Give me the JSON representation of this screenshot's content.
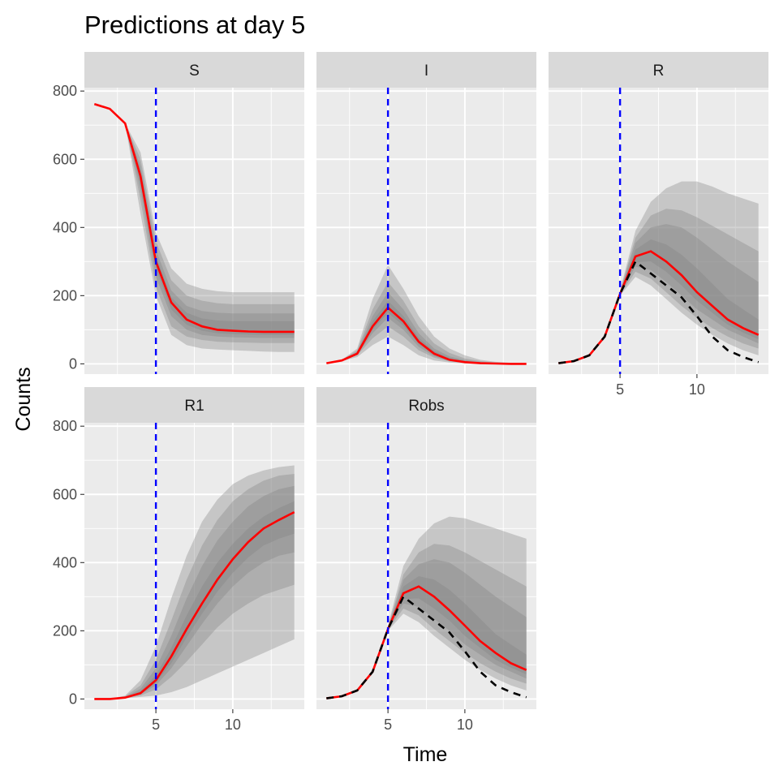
{
  "chart_data": {
    "type": "line",
    "title": "Predictions at day 5",
    "xlabel": "Time",
    "ylabel": "Counts",
    "xlim": [
      0.35,
      14.65
    ],
    "ylim": [
      -30,
      810
    ],
    "x_ticks": [
      5,
      10
    ],
    "y_ticks": [
      0,
      200,
      400,
      600,
      800
    ],
    "vline": {
      "x": 5,
      "color": "#0000ff",
      "style": "dashed"
    },
    "prediction_color": "#ff0000",
    "observed_color": "#000000",
    "band_fill": "#808080",
    "facets": [
      {
        "name": "S",
        "x": [
          1,
          2,
          3,
          4,
          5,
          6,
          7,
          8,
          9,
          10,
          11,
          12,
          13,
          14
        ],
        "prediction": [
          762,
          748,
          705,
          550,
          300,
          180,
          130,
          110,
          100,
          97,
          95,
          94,
          94,
          94
        ],
        "bands": [
          {
            "lower": [
              762,
              748,
              705,
              440,
              200,
              85,
              55,
              45,
              42,
              40,
              38,
              36,
              35,
              35
            ],
            "upper": [
              762,
              748,
              705,
              620,
              385,
              280,
              235,
              220,
              213,
              210,
              210,
              210,
              210,
              210
            ]
          },
          {
            "lower": [
              762,
              748,
              705,
              480,
              225,
              110,
              80,
              70,
              65,
              63,
              62,
              61,
              61,
              61
            ],
            "upper": [
              762,
              748,
              705,
              600,
              360,
              245,
              200,
              185,
              178,
              175,
              175,
              175,
              175,
              175
            ]
          },
          {
            "lower": [
              762,
              748,
              705,
              510,
              255,
              140,
              100,
              85,
              80,
              78,
              77,
              76,
              76,
              76
            ],
            "upper": [
              762,
              748,
              705,
              580,
              335,
              215,
              170,
              155,
              150,
              148,
              148,
              148,
              148,
              148
            ]
          },
          {
            "lower": [
              762,
              748,
              705,
              530,
              280,
              160,
              115,
              97,
              90,
              87,
              86,
              85,
              85,
              85
            ],
            "upper": [
              762,
              748,
              705,
              565,
              315,
              195,
              150,
              133,
              127,
              125,
              125,
              125,
              125,
              125
            ]
          }
        ]
      },
      {
        "name": "I",
        "x": [
          1,
          2,
          3,
          4,
          5,
          6,
          7,
          8,
          9,
          10,
          11,
          12,
          13,
          14
        ],
        "prediction": [
          2,
          10,
          30,
          110,
          165,
          125,
          65,
          30,
          12,
          5,
          2,
          1,
          0,
          0
        ],
        "bands": [
          {
            "lower": [
              2,
              8,
              20,
              55,
              80,
              55,
              25,
              10,
              4,
              1,
              0,
              0,
              0,
              0
            ],
            "upper": [
              2,
              12,
              45,
              190,
              290,
              220,
              140,
              80,
              45,
              25,
              12,
              6,
              3,
              2
            ]
          },
          {
            "lower": [
              2,
              9,
              25,
              75,
              110,
              80,
              40,
              18,
              7,
              3,
              1,
              0,
              0,
              0
            ],
            "upper": [
              2,
              11,
              40,
              160,
              240,
              185,
              110,
              60,
              32,
              16,
              8,
              4,
              2,
              1
            ]
          },
          {
            "lower": [
              2,
              9,
              27,
              90,
              135,
              100,
              50,
              22,
              9,
              4,
              1,
              0,
              0,
              0
            ],
            "upper": [
              2,
              11,
              35,
              140,
              210,
              160,
              90,
              45,
              22,
              11,
              5,
              2,
              1,
              0
            ]
          },
          {
            "lower": [
              2,
              10,
              28,
              100,
              150,
              112,
              58,
              26,
              10,
              4,
              2,
              1,
              0,
              0
            ],
            "upper": [
              2,
              10,
              33,
              125,
              185,
              140,
              77,
              37,
              17,
              8,
              3,
              1,
              0,
              0
            ]
          }
        ]
      },
      {
        "name": "R",
        "x": [
          1,
          2,
          3,
          4,
          5,
          6,
          7,
          8,
          9,
          10,
          11,
          12,
          13,
          14
        ],
        "prediction": [
          2,
          8,
          25,
          80,
          205,
          315,
          330,
          300,
          260,
          210,
          170,
          130,
          105,
          85
        ],
        "observed": [
          2,
          8,
          25,
          80,
          205,
          300,
          265,
          230,
          195,
          140,
          80,
          40,
          20,
          5
        ],
        "bands": [
          {
            "lower": [
              2,
              8,
              25,
              78,
              200,
              255,
              230,
              190,
              150,
              115,
              85,
              60,
              40,
              25
            ],
            "upper": [
              2,
              8,
              25,
              82,
              215,
              390,
              475,
              515,
              535,
              535,
              520,
              500,
              485,
              470
            ]
          },
          {
            "lower": [
              2,
              8,
              25,
              79,
              203,
              270,
              250,
              210,
              170,
              135,
              105,
              80,
              60,
              45
            ],
            "upper": [
              2,
              8,
              25,
              81,
              212,
              370,
              435,
              455,
              450,
              430,
              405,
              380,
              355,
              330
            ]
          },
          {
            "lower": [
              2,
              8,
              25,
              80,
              204,
              285,
              275,
              240,
              200,
              160,
              130,
              100,
              80,
              60
            ],
            "upper": [
              2,
              8,
              25,
              80,
              210,
              355,
              400,
              410,
              400,
              370,
              335,
              300,
              270,
              240
            ]
          },
          {
            "lower": [
              2,
              8,
              25,
              80,
              204,
              298,
              300,
              270,
              230,
              185,
              150,
              115,
              92,
              72
            ],
            "upper": [
              2,
              8,
              25,
              80,
              207,
              335,
              365,
              350,
              320,
              280,
              235,
              190,
              160,
              130
            ]
          }
        ]
      },
      {
        "name": "R1",
        "x": [
          1,
          2,
          3,
          4,
          5,
          6,
          7,
          8,
          9,
          10,
          11,
          12,
          13,
          14
        ],
        "prediction": [
          0,
          0,
          4,
          17,
          55,
          125,
          205,
          280,
          350,
          410,
          460,
          500,
          525,
          548
        ],
        "bands": [
          {
            "lower": [
              0,
              0,
              2,
              6,
              10,
              20,
              35,
              55,
              75,
              95,
              115,
              135,
              155,
              175
            ],
            "upper": [
              0,
              0,
              10,
              55,
              155,
              295,
              420,
              520,
              585,
              630,
              655,
              670,
              680,
              685
            ]
          },
          {
            "lower": [
              0,
              0,
              3,
              10,
              28,
              65,
              110,
              160,
              210,
              250,
              280,
              305,
              320,
              335
            ],
            "upper": [
              0,
              0,
              8,
              40,
              115,
              230,
              350,
              450,
              525,
              580,
              615,
              640,
              655,
              660
            ]
          },
          {
            "lower": [
              0,
              0,
              3,
              13,
              40,
              90,
              155,
              220,
              280,
              330,
              370,
              400,
              420,
              430
            ],
            "upper": [
              0,
              0,
              6,
              30,
              90,
              185,
              295,
              390,
              465,
              520,
              565,
              595,
              615,
              625
            ]
          },
          {
            "lower": [
              0,
              0,
              4,
              15,
              47,
              105,
              180,
              250,
              315,
              370,
              415,
              450,
              470,
              485
            ],
            "upper": [
              0,
              0,
              5,
              23,
              70,
              150,
              245,
              330,
              400,
              455,
              500,
              535,
              560,
              580
            ]
          }
        ]
      },
      {
        "name": "Robs",
        "x": [
          1,
          2,
          3,
          4,
          5,
          6,
          7,
          8,
          9,
          10,
          11,
          12,
          13,
          14
        ],
        "prediction": [
          2,
          8,
          25,
          80,
          205,
          310,
          330,
          300,
          260,
          215,
          170,
          135,
          105,
          85
        ],
        "observed": [
          2,
          8,
          25,
          80,
          205,
          300,
          265,
          230,
          195,
          140,
          80,
          40,
          20,
          5
        ],
        "bands": [
          {
            "lower": [
              2,
              8,
              25,
              78,
              200,
              250,
              225,
              185,
              150,
              115,
              85,
              60,
              40,
              25
            ],
            "upper": [
              2,
              8,
              25,
              82,
              215,
              390,
              470,
              515,
              535,
              530,
              515,
              500,
              485,
              470
            ]
          },
          {
            "lower": [
              2,
              8,
              25,
              79,
              203,
              265,
              245,
              205,
              170,
              135,
              105,
              80,
              60,
              45
            ],
            "upper": [
              2,
              8,
              25,
              81,
              212,
              365,
              430,
              455,
              450,
              430,
              405,
              380,
              355,
              330
            ]
          },
          {
            "lower": [
              2,
              8,
              25,
              80,
              204,
              280,
              270,
              235,
              200,
              160,
              130,
              100,
              80,
              60
            ],
            "upper": [
              2,
              8,
              25,
              80,
              210,
              350,
              395,
              410,
              400,
              370,
              335,
              300,
              270,
              240
            ]
          },
          {
            "lower": [
              2,
              8,
              25,
              80,
              204,
              293,
              295,
              265,
              230,
              185,
              150,
              115,
              92,
              72
            ],
            "upper": [
              2,
              8,
              25,
              80,
              207,
              330,
              360,
              350,
              320,
              280,
              235,
              190,
              160,
              130
            ]
          }
        ]
      }
    ]
  }
}
